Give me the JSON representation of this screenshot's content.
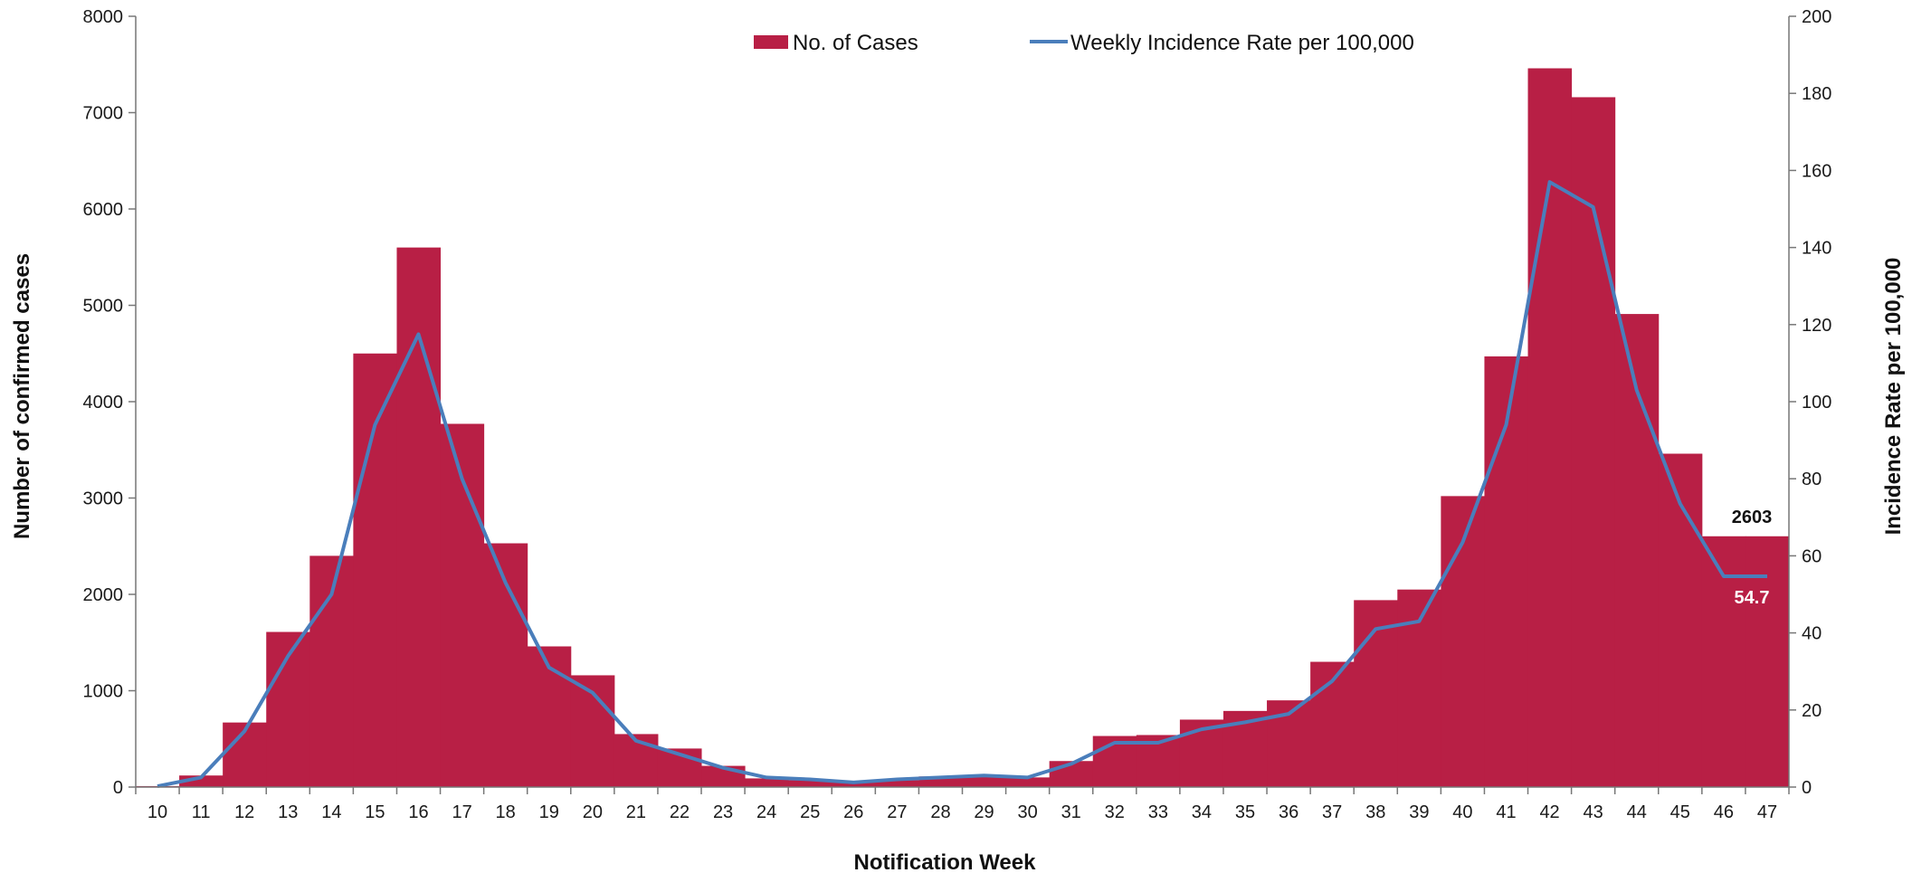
{
  "chart_data": {
    "type": "bar+line",
    "title": "",
    "xlabel": "Notification Week",
    "ylabel_left": "Number of confirmed cases",
    "ylabel_right": "Incidence Rate per 100,000",
    "ylim_left": [
      0,
      8000
    ],
    "ylim_right": [
      0,
      200
    ],
    "yticks_left": [
      "0",
      "1000",
      "2000",
      "3000",
      "4000",
      "5000",
      "6000",
      "7000",
      "8000"
    ],
    "yticks_right": [
      "0",
      "20",
      "40",
      "60",
      "80",
      "100",
      "120",
      "140",
      "160",
      "180",
      "200"
    ],
    "grid": false,
    "legend_position": "top-center",
    "categories": [
      "10",
      "11",
      "12",
      "13",
      "14",
      "15",
      "16",
      "17",
      "18",
      "19",
      "20",
      "21",
      "22",
      "23",
      "24",
      "25",
      "26",
      "27",
      "28",
      "29",
      "30",
      "31",
      "32",
      "33",
      "34",
      "35",
      "36",
      "37",
      "38",
      "39",
      "40",
      "41",
      "42",
      "43",
      "44",
      "45",
      "46",
      "47"
    ],
    "series": [
      {
        "name": "No. of Cases",
        "kind": "bar",
        "axis": "left",
        "color": "#B81F45",
        "values": [
          10,
          120,
          670,
          1610,
          2400,
          4500,
          5600,
          3770,
          2530,
          1460,
          1160,
          550,
          400,
          220,
          90,
          70,
          50,
          70,
          110,
          120,
          100,
          270,
          530,
          540,
          700,
          790,
          900,
          1300,
          1940,
          2050,
          3020,
          4470,
          7460,
          7160,
          4910,
          3460,
          2603,
          2603
        ]
      },
      {
        "name": "Weekly Incidence Rate per 100,000",
        "kind": "line",
        "axis": "right",
        "color": "#4A7EBB",
        "values": [
          0.2,
          2.5,
          14.5,
          34,
          50,
          94,
          117.5,
          80,
          53,
          31,
          24.5,
          12,
          8.5,
          5,
          2.5,
          2,
          1.2,
          2,
          2.5,
          3,
          2.5,
          6,
          11.5,
          11.5,
          15,
          16.8,
          19,
          27.5,
          41,
          43,
          63.5,
          94,
          157,
          150.5,
          103,
          73.5,
          54.7,
          54.7
        ]
      }
    ],
    "annotations": {
      "last_cases_label": "2603",
      "last_rate_label": "54.7"
    }
  }
}
